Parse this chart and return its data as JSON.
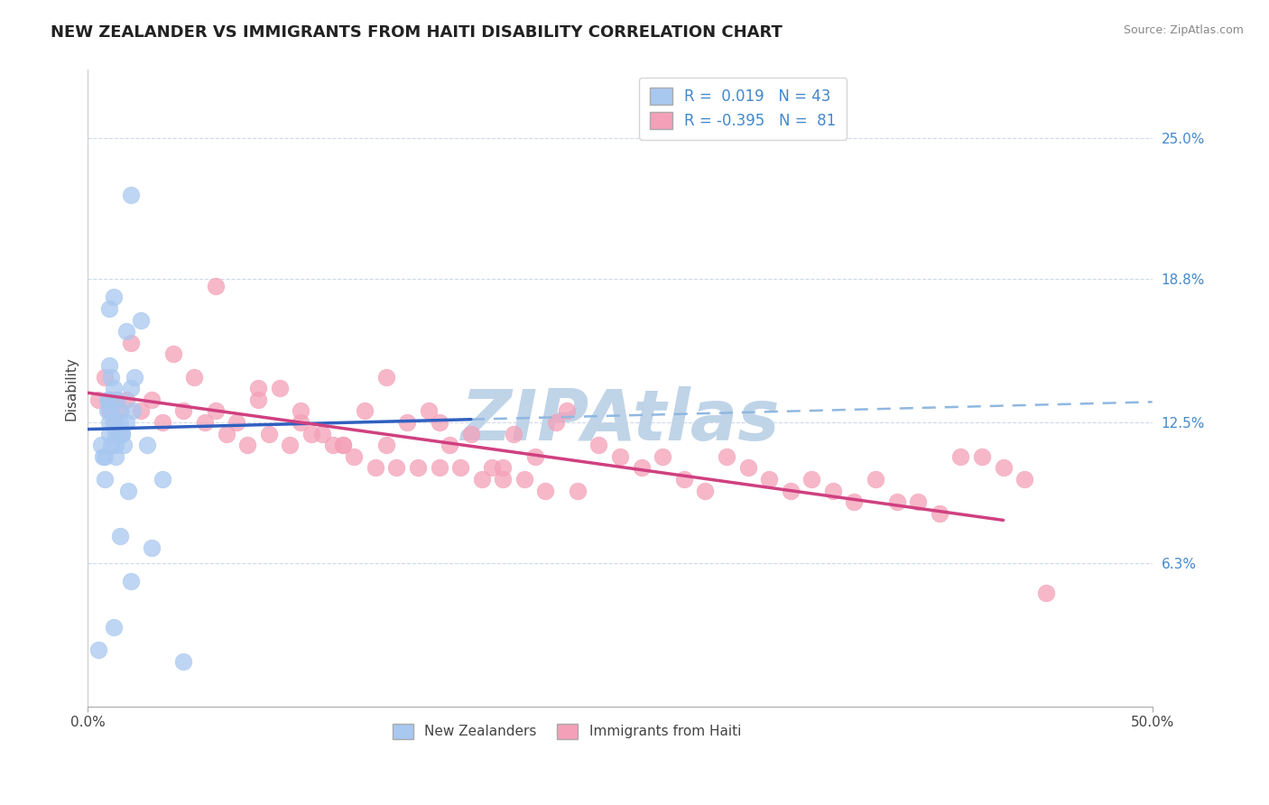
{
  "title": "NEW ZEALANDER VS IMMIGRANTS FROM HAITI DISABILITY CORRELATION CHART",
  "source": "Source: ZipAtlas.com",
  "ylabel": "Disability",
  "right_yticks": [
    6.3,
    12.5,
    18.8,
    25.0
  ],
  "right_ytick_labels": [
    "6.3%",
    "12.5%",
    "18.8%",
    "25.0%"
  ],
  "xlim": [
    0.0,
    50.0
  ],
  "ylim": [
    0.0,
    28.0
  ],
  "nz_color": "#a8c8f0",
  "haiti_color": "#f4a0b8",
  "nz_line_color": "#3060c0",
  "haiti_line_color": "#d04080",
  "nz_dashed_color": "#90b8e0",
  "nz_scatter_x": [
    0.5,
    0.8,
    1.0,
    1.0,
    1.0,
    1.1,
    1.1,
    1.2,
    1.2,
    1.3,
    1.3,
    1.4,
    1.5,
    1.5,
    1.6,
    1.8,
    2.0,
    2.0,
    2.2,
    2.5,
    2.8,
    3.0,
    3.5,
    4.5,
    0.6,
    0.7,
    0.8,
    0.9,
    0.9,
    1.0,
    1.0,
    1.1,
    1.2,
    1.3,
    1.4,
    1.6,
    1.7,
    1.8,
    1.9,
    2.0,
    2.1,
    1.2,
    1.5
  ],
  "nz_scatter_y": [
    2.5,
    11.0,
    12.5,
    13.5,
    12.0,
    13.0,
    11.5,
    12.5,
    14.0,
    12.0,
    11.5,
    13.5,
    13.0,
    12.5,
    12.0,
    16.5,
    22.5,
    14.0,
    14.5,
    17.0,
    11.5,
    7.0,
    10.0,
    2.0,
    11.5,
    11.0,
    10.0,
    13.5,
    13.0,
    15.0,
    17.5,
    14.5,
    18.0,
    11.0,
    12.0,
    12.0,
    11.5,
    12.5,
    9.5,
    5.5,
    13.0,
    3.5,
    7.5
  ],
  "haiti_scatter_x": [
    0.5,
    0.8,
    1.0,
    1.0,
    1.2,
    1.3,
    1.5,
    1.5,
    1.8,
    2.0,
    2.5,
    3.0,
    3.5,
    4.0,
    4.5,
    5.0,
    5.5,
    6.0,
    6.5,
    7.0,
    7.5,
    8.0,
    8.5,
    9.0,
    9.5,
    10.0,
    10.5,
    11.0,
    11.5,
    12.0,
    12.5,
    13.0,
    13.5,
    14.0,
    14.5,
    15.0,
    15.5,
    16.0,
    16.5,
    17.0,
    17.5,
    18.0,
    18.5,
    19.0,
    19.5,
    20.0,
    20.5,
    21.0,
    21.5,
    22.0,
    22.5,
    23.0,
    24.0,
    25.0,
    26.0,
    27.0,
    28.0,
    29.0,
    30.0,
    31.0,
    32.0,
    33.0,
    34.0,
    35.0,
    36.0,
    37.0,
    38.0,
    39.0,
    40.0,
    41.0,
    42.0,
    43.0,
    44.0,
    45.0,
    6.0,
    8.0,
    10.0,
    12.0,
    14.0,
    16.5,
    19.5
  ],
  "haiti_scatter_y": [
    13.5,
    14.5,
    13.0,
    13.5,
    12.5,
    13.5,
    12.0,
    13.0,
    13.5,
    16.0,
    13.0,
    13.5,
    12.5,
    15.5,
    13.0,
    14.5,
    12.5,
    13.0,
    12.0,
    12.5,
    11.5,
    13.5,
    12.0,
    14.0,
    11.5,
    13.0,
    12.0,
    12.0,
    11.5,
    11.5,
    11.0,
    13.0,
    10.5,
    14.5,
    10.5,
    12.5,
    10.5,
    13.0,
    12.5,
    11.5,
    10.5,
    12.0,
    10.0,
    10.5,
    10.5,
    12.0,
    10.0,
    11.0,
    9.5,
    12.5,
    13.0,
    9.5,
    11.5,
    11.0,
    10.5,
    11.0,
    10.0,
    9.5,
    11.0,
    10.5,
    10.0,
    9.5,
    10.0,
    9.5,
    9.0,
    10.0,
    9.0,
    9.0,
    8.5,
    11.0,
    11.0,
    10.5,
    10.0,
    5.0,
    18.5,
    14.0,
    12.5,
    11.5,
    11.5,
    10.5,
    10.0
  ],
  "watermark": "ZIPAtlas",
  "watermark_color": "#c0d4e8",
  "background_color": "#ffffff",
  "grid_color": "#d0d8e8",
  "title_fontsize": 13,
  "axis_label_fontsize": 11,
  "tick_fontsize": 11,
  "right_tick_color": "#4488cc",
  "nz_line_x0": 0.0,
  "nz_line_x1": 50.0,
  "nz_line_y0": 12.2,
  "nz_line_y1": 13.4,
  "nz_solid_x1": 18.0,
  "haiti_line_x0": 0.0,
  "haiti_line_x1": 43.0,
  "haiti_line_y0": 13.8,
  "haiti_line_y1": 8.2
}
